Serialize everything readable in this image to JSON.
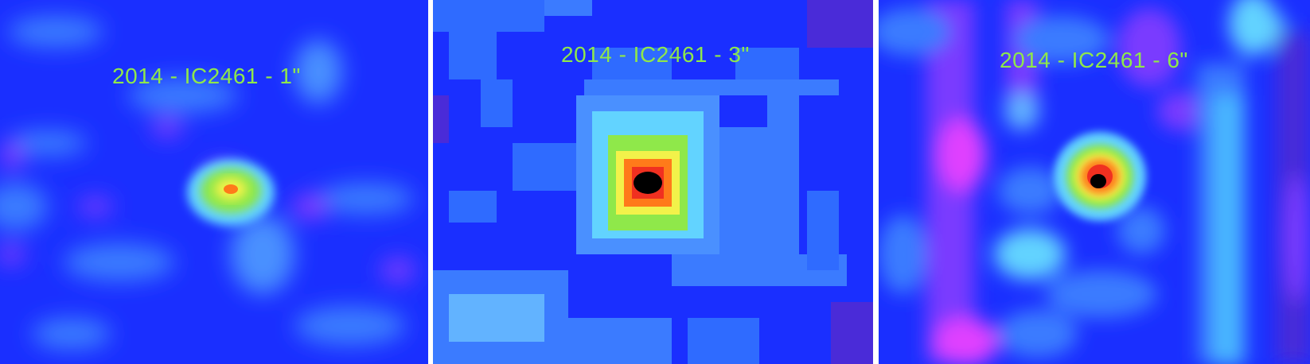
{
  "panels": [
    {
      "label": "2014 - IC2461 - 1\""
    },
    {
      "label": "2014 - IC2461 - 3\""
    },
    {
      "label": "2014 - IC2461 - 6\""
    }
  ],
  "colors": {
    "background": "#1a2fff",
    "faint": "#2f6bff",
    "cyan": "#62d3ff",
    "green": "#8fe84a",
    "yellow": "#f2f24a",
    "orange": "#ff7a1a",
    "red": "#f03020",
    "magenta": "#c040ff",
    "black": "#000000",
    "label": "#8fe84a"
  }
}
